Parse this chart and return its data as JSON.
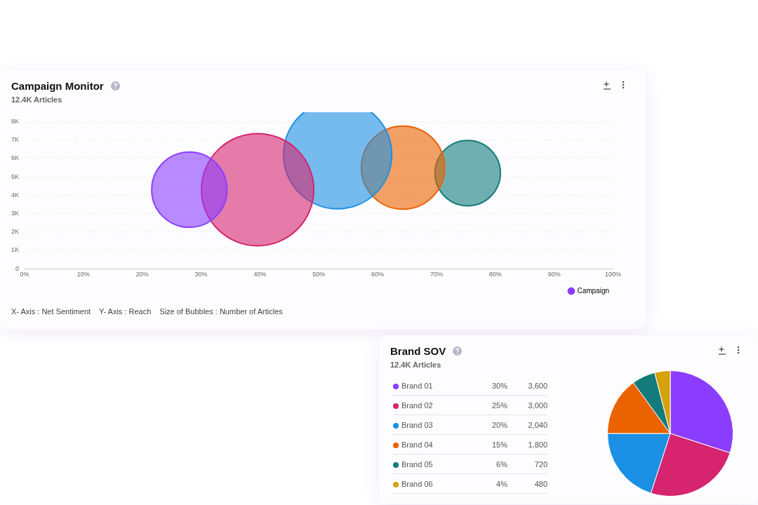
{
  "chart_data": [
    {
      "type": "bubble",
      "title": "Campaign Monitor",
      "subtitle": "12.4K Articles",
      "annotations": [
        "X- Axis : Net Sentiment",
        "Y- Axis : Reach",
        "Size of Bubbles : Number of Articles"
      ],
      "series": [
        {
          "name": "Campaign",
          "color": "#8b3dff",
          "x": [
            28
          ],
          "values": [
            4300
          ],
          "sizes": [
            0.45
          ]
        },
        {
          "color": "#d6246e",
          "x": [
            39.6
          ],
          "values": [
            4300
          ],
          "sizes": [
            1
          ]
        },
        {
          "color": "#1a8fe3",
          "x": [
            53.2
          ],
          "values": [
            6200
          ],
          "sizes": [
            0.93
          ]
        },
        {
          "color": "#eb6200",
          "x": [
            64.3
          ],
          "values": [
            5500
          ],
          "sizes": [
            0.55
          ]
        },
        {
          "color": "#137b7b",
          "x": [
            75.3
          ],
          "values": [
            5200
          ],
          "sizes": [
            0.34
          ]
        }
      ],
      "xlim": [
        0,
        100
      ],
      "xticks": [
        {
          "value": 0,
          "label": "0%"
        },
        {
          "value": 10,
          "label": "10%"
        },
        {
          "value": 20,
          "label": "20%"
        },
        {
          "value": 30,
          "label": "30%"
        },
        {
          "value": 40,
          "label": "40%"
        },
        {
          "value": 50,
          "label": "50%"
        },
        {
          "value": 60,
          "label": "60%"
        },
        {
          "value": 70,
          "label": "70%"
        },
        {
          "value": 80,
          "label": "80%"
        },
        {
          "value": 90,
          "label": "90%"
        },
        {
          "value": 100,
          "label": "100%"
        }
      ],
      "ylim": [
        0,
        8000
      ],
      "yticks": [
        0,
        {
          "value": 1000,
          "label": "1K"
        },
        {
          "value": 2000,
          "label": "2K"
        },
        {
          "value": 3000,
          "label": "3K"
        },
        {
          "value": 4000,
          "label": "4K"
        },
        {
          "value": 5000,
          "label": "5K"
        },
        {
          "value": 6000,
          "label": "6K"
        },
        {
          "value": 7000,
          "label": "7K"
        },
        {
          "value": 8000,
          "label": "8K"
        }
      ],
      "grid": "y",
      "legend": "bottom right"
    },
    {
      "type": "pie",
      "title": "Brand SOV",
      "subtitle": "12.4K Articles",
      "categories": [
        "Brand 01",
        "Brand 02",
        "Brand 03",
        "Brand 04",
        "Brand 05",
        "Brand 06"
      ],
      "values": [
        30,
        25,
        20,
        15,
        6,
        4
      ],
      "annotations": [
        "3,600",
        "3,000",
        "2,040",
        "1,800",
        "720",
        "480"
      ],
      "colors": [
        "#8b3dff",
        "#d6246e",
        "#1a8fe3",
        "#eb6200",
        "#137b7b",
        "#d4a20a"
      ],
      "value_labels": [
        "30%",
        "25%",
        "20%",
        "15%",
        "6%",
        "4%"
      ],
      "legend": "left"
    }
  ]
}
